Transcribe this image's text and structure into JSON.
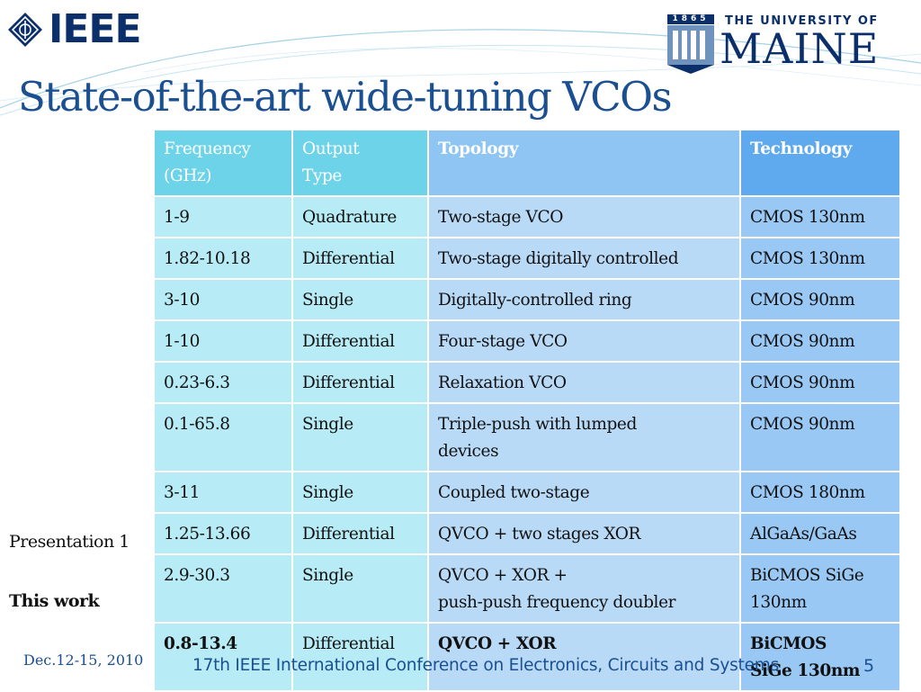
{
  "header": {
    "ieee_logo_text": "IEEE",
    "university_year": "1865",
    "university_line1": "THE UNIVERSITY OF",
    "university_line2": "MAINE"
  },
  "slide": {
    "title": "State-of-the-art wide-tuning VCOs",
    "side_labels": [
      "Presentation 1",
      "This work"
    ]
  },
  "table": {
    "headers": [
      [
        "Frequency",
        "(GHz)"
      ],
      [
        "Output",
        "Type"
      ],
      [
        "Topology"
      ],
      [
        "Technology"
      ]
    ],
    "rows": [
      [
        [
          "1-9"
        ],
        [
          "Quadrature"
        ],
        [
          "Two-stage VCO"
        ],
        [
          "CMOS 130nm"
        ]
      ],
      [
        [
          "1.82-10.18"
        ],
        [
          "Differential"
        ],
        [
          "Two-stage digitally controlled"
        ],
        [
          "CMOS 130nm"
        ]
      ],
      [
        [
          "3-10"
        ],
        [
          "Single"
        ],
        [
          "Digitally-controlled ring"
        ],
        [
          "CMOS 90nm"
        ]
      ],
      [
        [
          "1-10"
        ],
        [
          "Differential"
        ],
        [
          "Four-stage VCO"
        ],
        [
          "CMOS 90nm"
        ]
      ],
      [
        [
          "0.23-6.3"
        ],
        [
          "Differential"
        ],
        [
          "Relaxation VCO"
        ],
        [
          "CMOS 90nm"
        ]
      ],
      [
        [
          "0.1-65.8"
        ],
        [
          "Single"
        ],
        [
          "Triple-push with lumped",
          "devices"
        ],
        [
          "CMOS 90nm"
        ]
      ],
      [
        [
          "3-11"
        ],
        [
          "Single"
        ],
        [
          "Coupled two-stage"
        ],
        [
          "CMOS 180nm"
        ]
      ],
      [
        [
          "1.25-13.66"
        ],
        [
          "Differential"
        ],
        [
          "QVCO + two stages XOR"
        ],
        [
          "AlGaAs/GaAs"
        ]
      ],
      [
        [
          "2.9-30.3"
        ],
        [
          "Single"
        ],
        [
          "QVCO + XOR +",
          "push-push frequency doubler"
        ],
        [
          "BiCMOS SiGe",
          "130nm"
        ]
      ],
      [
        [
          "0.8-13.4"
        ],
        [
          "Differential"
        ],
        [
          "QVCO + XOR"
        ],
        [
          "BiCMOS",
          "SiGe 130nm"
        ]
      ]
    ]
  },
  "footer": {
    "date": "Dec.12-15, 2010",
    "conference": "17th IEEE International Conference on Electronics, Circuits and Systems",
    "page_number": "5"
  },
  "colors": {
    "title": "#1a4f92",
    "ieee_blue": "#0b2f6b",
    "header_cyan": "#6cd3e8",
    "header_light_blue": "#8fc5f2",
    "header_blue": "#5faaee",
    "cell_cyan": "#b7ecf6",
    "cell_light_blue": "#b9daf7",
    "cell_blue": "#9ac8f4"
  }
}
